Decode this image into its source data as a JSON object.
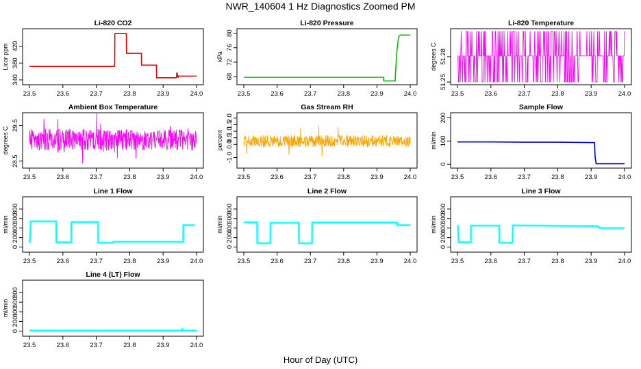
{
  "figure": {
    "title": "NWR_140604  1 Hz Diagnostics Zoomed PM",
    "xlabel": "Hour of Day (UTC)"
  },
  "chart_data": [
    {
      "id": "co2",
      "type": "line",
      "title": "Li-820 CO2",
      "ylabel": "Licor ppm",
      "color": "#e00000",
      "xlim": [
        23.5,
        24.0
      ],
      "ylim": [
        335,
        455
      ],
      "xticks": [
        23.5,
        23.6,
        23.7,
        23.8,
        23.9,
        24.0
      ],
      "yticks": [
        340,
        380,
        420
      ],
      "x": [
        23.5,
        23.6,
        23.755,
        23.7555,
        23.79,
        23.7905,
        23.835,
        23.8355,
        23.88,
        23.8805,
        23.94,
        23.941,
        23.945,
        23.946,
        24.0
      ],
      "y": [
        372,
        372,
        372,
        450,
        450,
        403,
        403,
        375,
        375,
        345,
        345,
        357,
        346,
        349,
        349
      ]
    },
    {
      "id": "pressure",
      "type": "line",
      "title": "Li-820 Pressure",
      "ylabel": "kPa",
      "color": "#00c000",
      "xlim": [
        23.5,
        24.0
      ],
      "ylim": [
        66.5,
        80.5
      ],
      "xticks": [
        23.5,
        23.6,
        23.7,
        23.8,
        23.9,
        24.0
      ],
      "yticks": [
        68,
        72,
        76,
        80
      ],
      "x": [
        23.5,
        23.92,
        23.9205,
        23.955,
        23.9555,
        23.96,
        23.965,
        23.97,
        24.0
      ],
      "y": [
        67.8,
        67.8,
        66.8,
        66.8,
        68.5,
        75,
        79,
        79.5,
        79.5
      ]
    },
    {
      "id": "licor-temp",
      "type": "line",
      "title": "Li-820 Temperature",
      "ylabel": "degrees C",
      "color": "#ff00ff",
      "xlim": [
        23.5,
        24.0
      ],
      "ylim": [
        51.25,
        51.31
      ],
      "xticks": [
        23.5,
        23.6,
        23.7,
        23.8,
        23.9,
        24.0
      ],
      "yticks": [
        51.25,
        51.28
      ],
      "levels": [
        51.25,
        51.281,
        51.31
      ]
    },
    {
      "id": "box-temp",
      "type": "line",
      "title": "Ambient Box Temperature",
      "ylabel": "degrees C",
      "color": "#ff00ff",
      "xlim": [
        23.5,
        24.0
      ],
      "ylim": [
        28.38,
        29.78
      ],
      "xticks": [
        23.5,
        23.6,
        23.7,
        23.8,
        23.9,
        24.0
      ],
      "yticks": [
        28.5,
        29.5
      ],
      "mean": 29.1,
      "spread": 0.3
    },
    {
      "id": "rh",
      "type": "line",
      "title": "Gas Stream RH",
      "ylabel": "percent",
      "color": "#ffa500",
      "xlim": [
        23.5,
        24.0
      ],
      "ylim": [
        -1.6,
        2.2
      ],
      "xticks": [
        23.5,
        23.6,
        23.7,
        23.8,
        23.9,
        24.0
      ],
      "yticks": [
        -1.0,
        0.0,
        0.5,
        1.0,
        1.5,
        2.0
      ],
      "mean": 0.25,
      "spread": 0.45
    },
    {
      "id": "sample-flow",
      "type": "line",
      "title": "Sample Flow",
      "ylabel": "ml/min",
      "color": "#0000c8",
      "xlim": [
        23.5,
        24.0
      ],
      "ylim": [
        -5,
        210
      ],
      "xticks": [
        23.5,
        23.6,
        23.7,
        23.8,
        23.9,
        24.0
      ],
      "yticks": [
        0,
        100,
        200
      ],
      "x": [
        23.5,
        23.6,
        23.7,
        23.8,
        23.91,
        23.912,
        23.915,
        24.0
      ],
      "y": [
        96,
        96,
        95,
        95,
        93,
        30,
        2,
        2
      ]
    },
    {
      "id": "line1",
      "type": "line",
      "title": "Line 1 Flow",
      "ylabel": "ml/min",
      "color": "#00ffff",
      "xlim": [
        23.5,
        24.0
      ],
      "ylim": [
        -50,
        1000
      ],
      "xticks": [
        23.5,
        23.6,
        23.7,
        23.8,
        23.9,
        24.0
      ],
      "yticks": [
        0,
        200,
        400,
        600,
        800
      ],
      "x": [
        23.5,
        23.501,
        23.504,
        23.58,
        23.5805,
        23.625,
        23.6255,
        23.705,
        23.7055,
        23.75,
        23.7505,
        23.96,
        23.9605,
        23.995
      ],
      "y": [
        100,
        100,
        540,
        540,
        100,
        100,
        525,
        525,
        90,
        90,
        110,
        110,
        460,
        460
      ]
    },
    {
      "id": "line2",
      "type": "line",
      "title": "Line 2 Flow",
      "ylabel": "ml/min",
      "color": "#00ffff",
      "xlim": [
        23.5,
        24.0
      ],
      "ylim": [
        -50,
        1000
      ],
      "xticks": [
        23.5,
        23.6,
        23.7,
        23.8,
        23.9,
        24.0
      ],
      "yticks": [
        0,
        200,
        400,
        600,
        800
      ],
      "x": [
        23.5,
        23.54,
        23.5405,
        23.58,
        23.5805,
        23.665,
        23.6655,
        23.705,
        23.7055,
        23.96,
        23.9605,
        24.0
      ],
      "y": [
        520,
        520,
        80,
        80,
        510,
        510,
        80,
        80,
        515,
        515,
        460,
        460
      ]
    },
    {
      "id": "line3",
      "type": "line",
      "title": "Line 3 Flow",
      "ylabel": "ml/min",
      "color": "#00ffff",
      "xlim": [
        23.5,
        24.0
      ],
      "ylim": [
        -50,
        1000
      ],
      "xticks": [
        23.5,
        23.6,
        23.7,
        23.8,
        23.9,
        24.0
      ],
      "yticks": [
        0,
        200,
        400,
        600,
        800
      ],
      "x": [
        23.5,
        23.501,
        23.504,
        23.54,
        23.5405,
        23.625,
        23.6255,
        23.665,
        23.6655,
        23.92,
        23.925,
        24.0
      ],
      "y": [
        450,
        450,
        100,
        100,
        450,
        450,
        90,
        90,
        455,
        440,
        400,
        400
      ]
    },
    {
      "id": "line4",
      "type": "line",
      "title": "Line 4 (LT) Flow",
      "ylabel": "ml/min",
      "color": "#00ffff",
      "xlim": [
        23.5,
        24.0
      ],
      "ylim": [
        -50,
        1000
      ],
      "xticks": [
        23.5,
        23.6,
        23.7,
        23.8,
        23.9,
        24.0
      ],
      "yticks": [
        0,
        200,
        400,
        600,
        800
      ],
      "x": [
        23.5,
        23.955,
        23.957,
        23.959,
        23.961,
        24.0
      ],
      "y": [
        10,
        10,
        40,
        10,
        10,
        10
      ]
    }
  ]
}
